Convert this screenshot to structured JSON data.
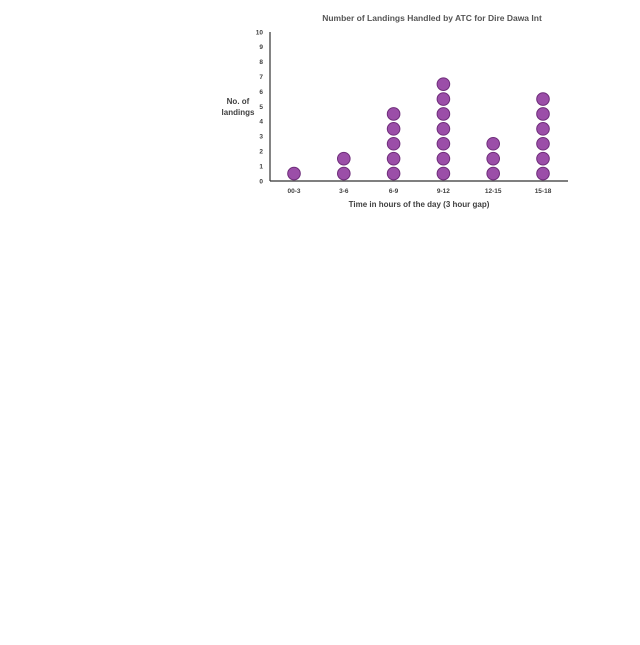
{
  "chart_data": {
    "type": "scatter",
    "subtype": "dot-plot",
    "title": "Number of Landings Handled by ATC for Dire Dawa Int",
    "xlabel": "Time in hours of the day (3 hour gap)",
    "ylabel_lines": [
      "No. of",
      "landings"
    ],
    "categories": [
      "00-3",
      "3-6",
      "6-9",
      "9-12",
      "12-15",
      "15-18"
    ],
    "values": [
      1,
      2,
      5,
      7,
      3,
      6
    ],
    "y_ticks": [
      "0",
      "1",
      "2",
      "3",
      "4",
      "5",
      "6",
      "7",
      "8",
      "9",
      "10"
    ],
    "ylim": [
      0,
      10
    ],
    "grid": false,
    "legend": "none",
    "colors": {
      "dot_fill": "#9b4ea8",
      "dot_stroke": "#6e2d7a",
      "axis": "#333333"
    }
  }
}
